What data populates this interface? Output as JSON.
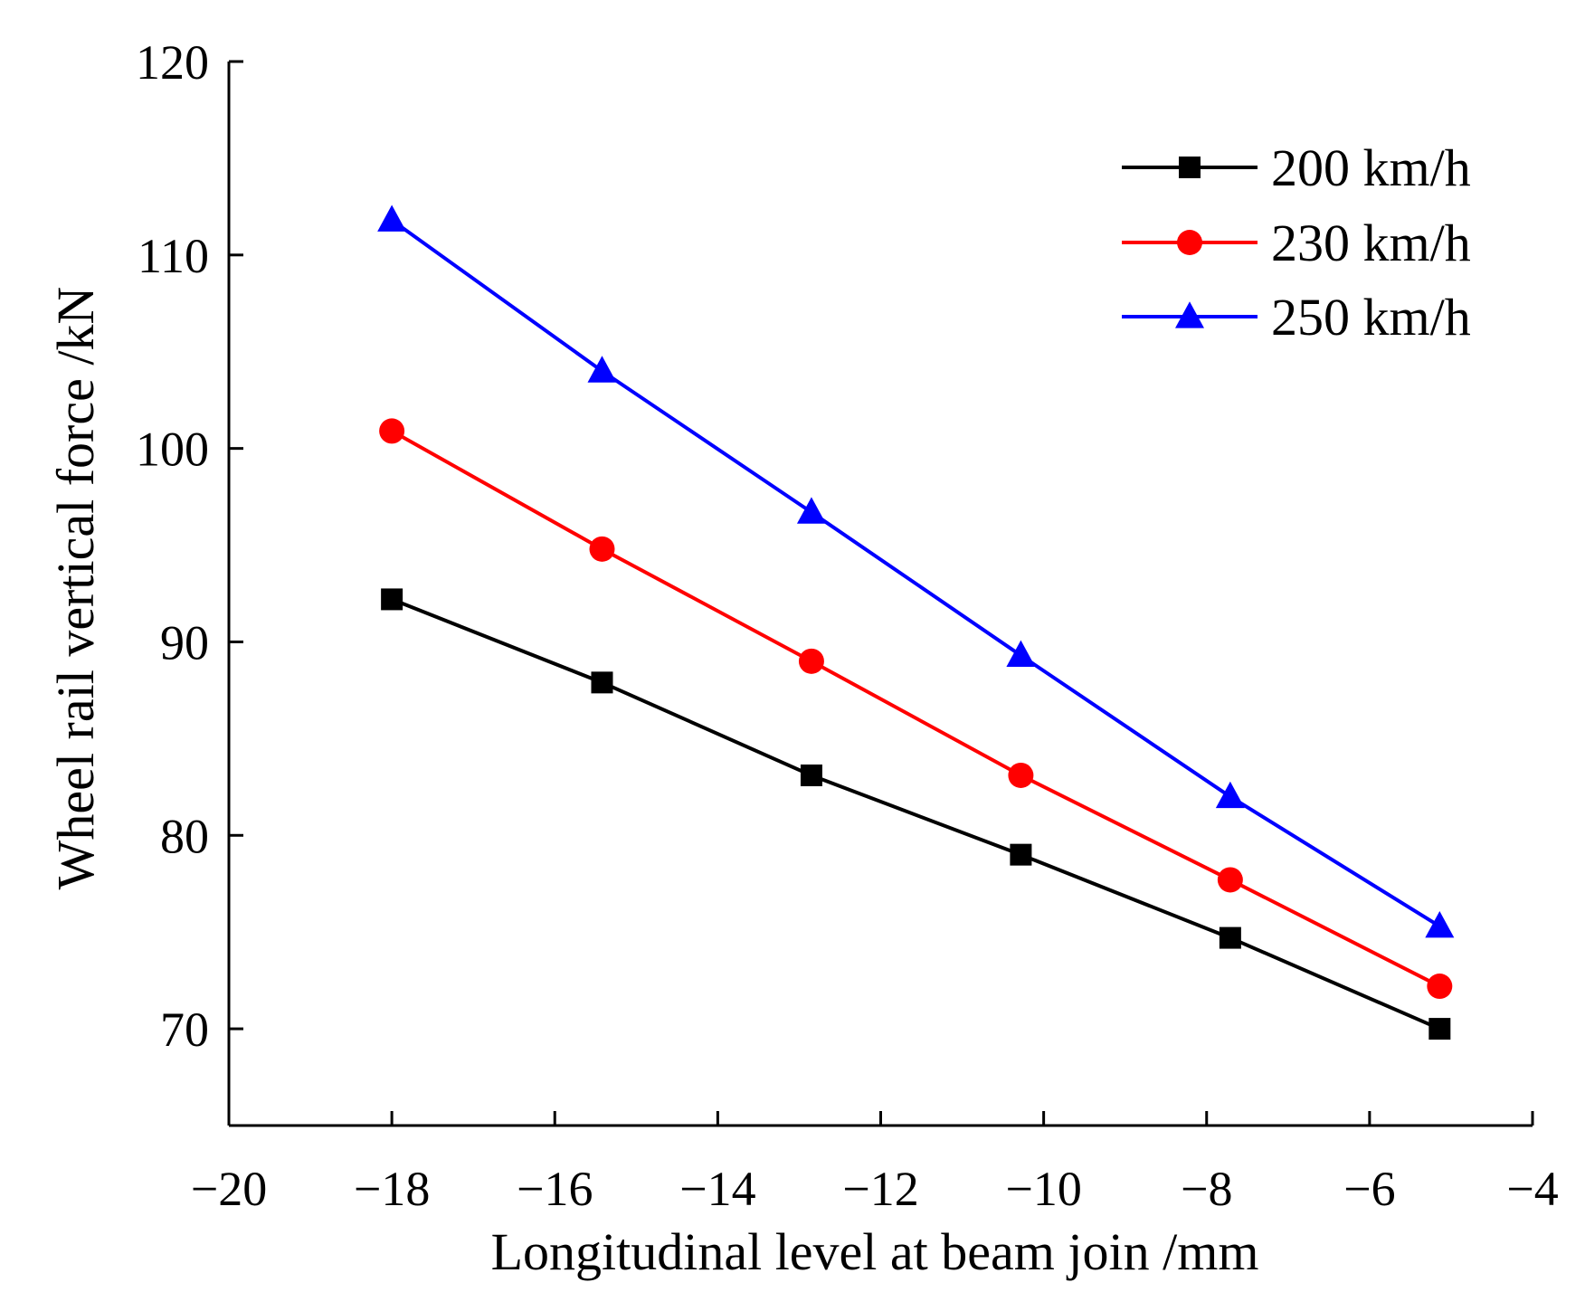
{
  "chart_data": {
    "type": "line",
    "title": "",
    "xlabel": "Longitudinal level at beam join /mm",
    "ylabel": "Wheel rail vertical force /kN",
    "xlim": [
      -20,
      -4
    ],
    "ylim": [
      65,
      120
    ],
    "xticks": [
      -20,
      -18,
      -16,
      -14,
      -12,
      -10,
      -8,
      -6,
      -4
    ],
    "xtick_labels": [
      "−20",
      "−18",
      "−16",
      "−14",
      "−12",
      "−10",
      "−8",
      "−6",
      "−4"
    ],
    "yticks": [
      70,
      80,
      90,
      100,
      110,
      120
    ],
    "ytick_labels": [
      "70",
      "80",
      "90",
      "100",
      "110",
      "120"
    ],
    "x": [
      -18,
      -15.42,
      -12.85,
      -10.28,
      -7.71,
      -5.14
    ],
    "legend_position": "top-right",
    "grid": false,
    "series": [
      {
        "name": "200 km/h",
        "color": "#000000",
        "marker": "square",
        "values": [
          92.2,
          87.9,
          83.1,
          79.0,
          74.7,
          70.0
        ]
      },
      {
        "name": "230 km/h",
        "color": "#ff0000",
        "marker": "circle",
        "values": [
          100.9,
          94.8,
          89.0,
          83.1,
          77.7,
          72.2
        ]
      },
      {
        "name": "250 km/h",
        "color": "#0000ff",
        "marker": "triangle",
        "values": [
          111.8,
          104.0,
          96.7,
          89.3,
          82.0,
          75.3
        ]
      }
    ]
  }
}
